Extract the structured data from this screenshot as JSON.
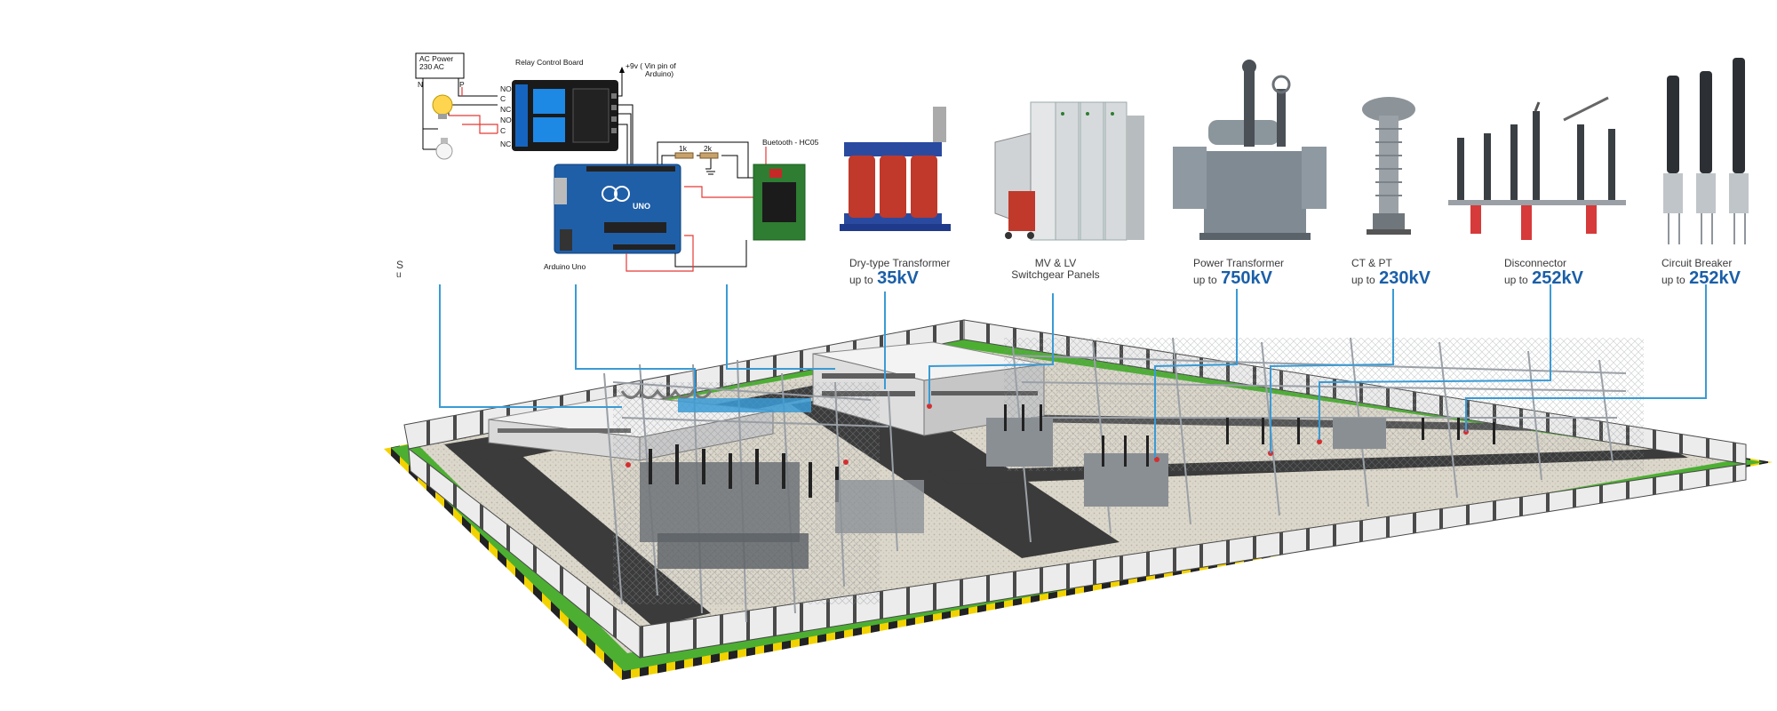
{
  "circuit": {
    "ac_power_line1": "AC Power",
    "ac_power_line2": "230 AC",
    "label_n": "N",
    "label_p": "P",
    "relay_board_title": "Relay Control  Board",
    "vin_note_line1": "+9v ( Vin pin of",
    "vin_note_line2": "Arduino)",
    "relay_pins": [
      "NO",
      "C",
      "NC",
      "NO",
      "C",
      "NC"
    ],
    "resistor_1k": "1k",
    "resistor_2k": "2k",
    "bluetooth_label": "Buetooth - HC05",
    "arduino_label": "Arduino Uno",
    "arduino_board_text": "UNO"
  },
  "products": [
    {
      "name": "Dry-type Transformer",
      "prefix": "up to",
      "value": "35kV"
    },
    {
      "name_line1": "MV & LV",
      "name_line2": "Switchgear Panels"
    },
    {
      "name": "Power Transformer",
      "prefix": "up to",
      "value": "750kV"
    },
    {
      "name": "CT & PT",
      "prefix": "up to",
      "value": "230kV"
    },
    {
      "name": "Disconnector",
      "prefix": "up to",
      "value": "252kV"
    },
    {
      "name": "Circuit Breaker",
      "prefix": "up to",
      "value": "252kV"
    }
  ],
  "partial_caption": {
    "line1": "S",
    "line2": "u"
  },
  "colors": {
    "callout_line": "#3a9bd5",
    "kv_text": "#1a5fa8",
    "grass": "#4caf32",
    "hazard_yellow": "#f2d200",
    "road": "#3b3b3b",
    "gravel": "#d9d4c8",
    "fence_panel": "#e8e8e8",
    "fence_post": "#4a4a4a",
    "transformer_red": "#c0392b",
    "arduino_blue": "#1f5fa8",
    "bluetooth_green": "#2e7d32"
  }
}
